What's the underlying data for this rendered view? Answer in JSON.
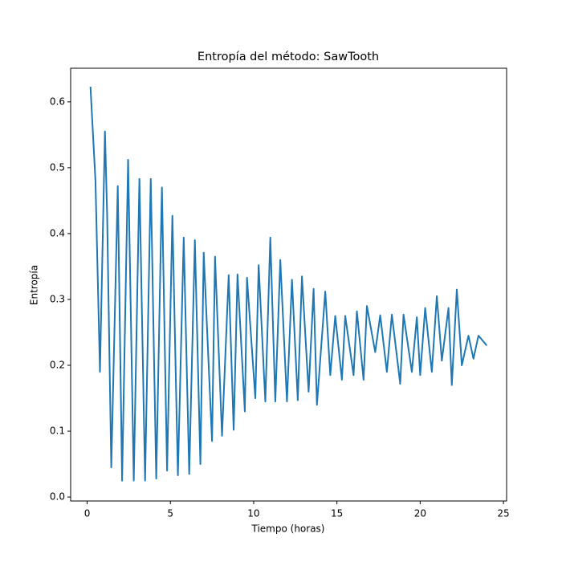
{
  "chart_data": {
    "type": "line",
    "title": "Entropía del método: SawTooth",
    "x_label": "Tiempo (horas)",
    "y_label": "Entropía",
    "x": [
      0.2,
      0.5,
      0.77,
      1.07,
      1.2,
      1.45,
      1.84,
      2.1,
      2.46,
      2.8,
      3.14,
      3.48,
      3.82,
      4.15,
      4.49,
      4.8,
      5.12,
      5.45,
      5.8,
      6.13,
      6.47,
      6.8,
      7.0,
      7.5,
      7.68,
      8.1,
      8.5,
      8.8,
      9.03,
      9.47,
      9.6,
      10.1,
      10.3,
      10.7,
      11.0,
      11.3,
      11.6,
      12.0,
      12.3,
      12.65,
      12.9,
      13.3,
      13.6,
      13.8,
      14.3,
      14.6,
      14.9,
      15.3,
      15.5,
      16.0,
      16.2,
      16.6,
      16.8,
      17.3,
      17.6,
      18.0,
      18.3,
      18.8,
      19.0,
      19.5,
      19.8,
      20.0,
      20.3,
      20.7,
      21.0,
      21.3,
      21.7,
      21.9,
      22.2,
      22.5,
      22.9,
      23.2,
      23.5,
      24.0
    ],
    "series": [
      {
        "color": "#1f77b4",
        "values": [
          0.623,
          0.48,
          0.19,
          0.555,
          0.43,
          0.045,
          0.472,
          0.025,
          0.512,
          0.025,
          0.483,
          0.025,
          0.483,
          0.028,
          0.47,
          0.04,
          0.427,
          0.033,
          0.394,
          0.035,
          0.39,
          0.05,
          0.371,
          0.085,
          0.365,
          0.093,
          0.337,
          0.102,
          0.338,
          0.13,
          0.333,
          0.15,
          0.352,
          0.145,
          0.394,
          0.145,
          0.36,
          0.145,
          0.33,
          0.147,
          0.335,
          0.16,
          0.316,
          0.14,
          0.312,
          0.185,
          0.275,
          0.178,
          0.275,
          0.185,
          0.282,
          0.178,
          0.29,
          0.22,
          0.276,
          0.19,
          0.277,
          0.172,
          0.277,
          0.19,
          0.273,
          0.185,
          0.287,
          0.19,
          0.305,
          0.207,
          0.287,
          0.17,
          0.315,
          0.2,
          0.245,
          0.21,
          0.245,
          0.23
        ]
      }
    ],
    "xlim": [
      -0.99,
      25.19
    ],
    "ylim": [
      -0.006,
      0.651
    ],
    "xticks": [
      0,
      5,
      10,
      15,
      20,
      25
    ],
    "yticks": [
      {
        "value": 0,
        "label": "0.0"
      },
      0.1,
      0.2,
      0.3,
      0.4,
      0.5,
      0.6
    ]
  }
}
